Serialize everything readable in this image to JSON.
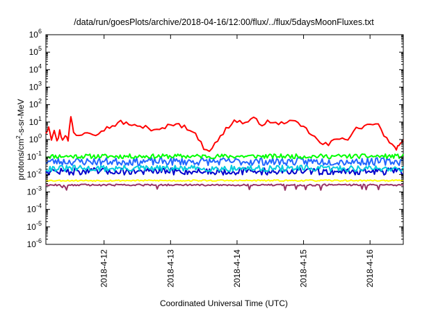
{
  "chart_data": {
    "type": "line",
    "title": "/data/run/goesPlots/archive/2018-04-16/12:00/flux/../flux/5daysMoonFluxes.txt",
    "xlabel": "Coordinated Universal Time (UTC)",
    "ylabel_parts": [
      "protons/cm",
      "2",
      "-s-sr-MeV"
    ],
    "y_scale": "log",
    "ylim": [
      1e-06,
      1000000.0
    ],
    "xlim": [
      "2018-04-11T03:00",
      "2018-04-16T12:00"
    ],
    "x_ticks": [
      "2018-4-12",
      "2018-4-13",
      "2018-4-14",
      "2018-4-15",
      "2018-4-16"
    ],
    "x_tick_values": [
      "2018-04-12T00:00",
      "2018-04-13T00:00",
      "2018-04-14T00:00",
      "2018-04-15T00:00",
      "2018-04-16T00:00"
    ],
    "y_ticks": [
      {
        "exp": -6,
        "label": [
          "10",
          "-6"
        ]
      },
      {
        "exp": -5,
        "label": [
          "10",
          "-5"
        ]
      },
      {
        "exp": -4,
        "label": [
          "10",
          "-4"
        ]
      },
      {
        "exp": -3,
        "label": [
          "10",
          "-3"
        ]
      },
      {
        "exp": -2,
        "label": [
          "10",
          "-2"
        ]
      },
      {
        "exp": -1,
        "label": [
          "10",
          "-1"
        ]
      },
      {
        "exp": 0,
        "label": [
          "10",
          "0"
        ]
      },
      {
        "exp": 1,
        "label": [
          "10",
          "1"
        ]
      },
      {
        "exp": 2,
        "label": [
          "10",
          "2"
        ]
      },
      {
        "exp": 3,
        "label": [
          "10",
          "3"
        ]
      },
      {
        "exp": 4,
        "label": [
          "10",
          "4"
        ]
      },
      {
        "exp": 5,
        "label": [
          "10",
          "5"
        ]
      },
      {
        "exp": 6,
        "label": [
          "10",
          "6"
        ]
      }
    ],
    "grid": false,
    "series": [
      {
        "color": "#ff0000",
        "width": 2,
        "y": [
          [
            "2018-04-11T03:00",
            2.5
          ],
          [
            "2018-04-11T04:00",
            6
          ],
          [
            "2018-04-11T05:00",
            1.2
          ],
          [
            "2018-04-11T06:00",
            4
          ],
          [
            "2018-04-11T07:00",
            0.7
          ],
          [
            "2018-04-11T08:00",
            3
          ],
          [
            "2018-04-11T09:00",
            1.0
          ],
          [
            "2018-04-11T10:00",
            2
          ],
          [
            "2018-04-11T11:00",
            0.8
          ],
          [
            "2018-04-11T12:00",
            22
          ],
          [
            "2018-04-11T13:00",
            2.5
          ],
          [
            "2018-04-11T15:00",
            1.8
          ],
          [
            "2018-04-11T18:00",
            3
          ],
          [
            "2018-04-11T21:00",
            2.2
          ],
          [
            "2018-04-12T00:00",
            4
          ],
          [
            "2018-04-12T03:00",
            6
          ],
          [
            "2018-04-12T06:00",
            10
          ],
          [
            "2018-04-12T09:00",
            8
          ],
          [
            "2018-04-12T12:00",
            5
          ],
          [
            "2018-04-12T15:00",
            6
          ],
          [
            "2018-04-12T18:00",
            3
          ],
          [
            "2018-04-12T21:00",
            4
          ],
          [
            "2018-04-13T00:00",
            7
          ],
          [
            "2018-04-13T02:00",
            9
          ],
          [
            "2018-04-13T04:00",
            6
          ],
          [
            "2018-04-13T07:00",
            4
          ],
          [
            "2018-04-13T10:00",
            1.2
          ],
          [
            "2018-04-13T12:00",
            0.35
          ],
          [
            "2018-04-13T14:00",
            0.25
          ],
          [
            "2018-04-13T17:00",
            0.8
          ],
          [
            "2018-04-13T20:00",
            4
          ],
          [
            "2018-04-13T23:00",
            12
          ],
          [
            "2018-04-14T03:00",
            9
          ],
          [
            "2018-04-14T06:00",
            15
          ],
          [
            "2018-04-14T09:00",
            8
          ],
          [
            "2018-04-14T12:00",
            11
          ],
          [
            "2018-04-14T15:00",
            7
          ],
          [
            "2018-04-14T18:00",
            12
          ],
          [
            "2018-04-14T21:00",
            9
          ],
          [
            "2018-04-15T00:00",
            5
          ],
          [
            "2018-04-15T03:00",
            2
          ],
          [
            "2018-04-15T06:00",
            0.6
          ],
          [
            "2018-04-15T09:00",
            0.5
          ],
          [
            "2018-04-15T11:00",
            0.9
          ],
          [
            "2018-04-15T14:00",
            1.5
          ],
          [
            "2018-04-15T16:00",
            1.0
          ],
          [
            "2018-04-15T19:00",
            4
          ],
          [
            "2018-04-15T22:00",
            6
          ],
          [
            "2018-04-16T01:00",
            8
          ],
          [
            "2018-04-16T03:00",
            6
          ],
          [
            "2018-04-16T05:00",
            2
          ],
          [
            "2018-04-16T07:00",
            0.6
          ],
          [
            "2018-04-16T09:00",
            0.3
          ],
          [
            "2018-04-16T10:00",
            0.35
          ],
          [
            "2018-04-16T11:00",
            0.5
          ],
          [
            "2018-04-16T12:00",
            1.0
          ]
        ],
        "jitter": 0.12
      },
      {
        "color": "#00ff00",
        "width": 2,
        "level": 0.11,
        "jitter": 0.13,
        "seed": 11
      },
      {
        "color": "#2266ff",
        "width": 2,
        "level": 0.055,
        "jitter": 0.22,
        "seed": 23
      },
      {
        "color": "#00ccdd",
        "width": 2,
        "level": 0.022,
        "jitter": 0.18,
        "seed": 31
      },
      {
        "color": "#0000cc",
        "width": 2,
        "level": 0.015,
        "jitter": 0.2,
        "seed": 47
      },
      {
        "color": "#ffff00",
        "width": 2,
        "level": 0.0045,
        "jitter": 0.04,
        "seed": 53
      },
      {
        "color": "#993366",
        "width": 2,
        "level": 0.0025,
        "jitter": 0.05,
        "seed": 61,
        "dips": true
      }
    ]
  }
}
